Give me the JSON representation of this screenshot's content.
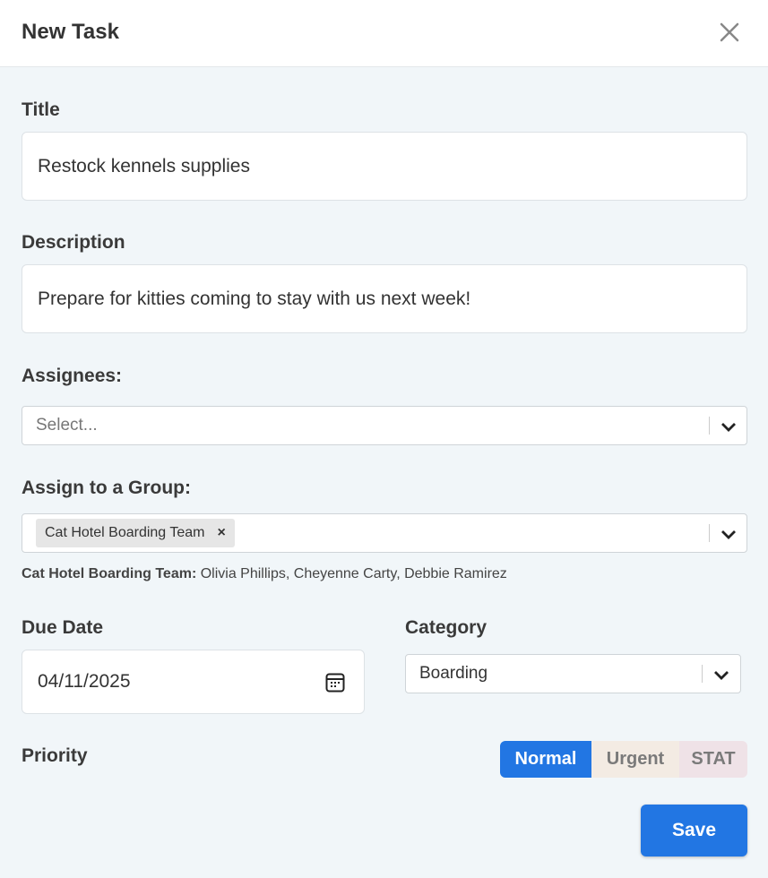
{
  "header": {
    "title": "New Task",
    "close_icon": "close-icon"
  },
  "form": {
    "title_label": "Title",
    "title_value": "Restock kennels supplies",
    "description_label": "Description",
    "description_value": "Prepare for kitties coming to stay with us next week!",
    "assignees_label": "Assignees:",
    "assignees_placeholder": "Select...",
    "group_label": "Assign to a Group:",
    "group_chip": "Cat Hotel Boarding Team",
    "group_chip_remove": "×",
    "group_members_name": "Cat Hotel Boarding Team:",
    "group_members": " Olivia Phillips, Cheyenne Carty, Debbie Ramirez",
    "due_date_label": "Due Date",
    "due_date_value": "04/11/2025",
    "category_label": "Category",
    "category_value": "Boarding",
    "priority_label": "Priority",
    "priority_options": [
      {
        "label": "Normal",
        "selected": true,
        "bg": "#2276e3",
        "color": "#ffffff"
      },
      {
        "label": "Urgent",
        "selected": false,
        "bg": "#f3ebe3",
        "color": "#7a7a7a"
      },
      {
        "label": "STAT",
        "selected": false,
        "bg": "#efe2e7",
        "color": "#7a7a7a"
      }
    ],
    "save_label": "Save"
  },
  "colors": {
    "accent": "#2276e3"
  }
}
